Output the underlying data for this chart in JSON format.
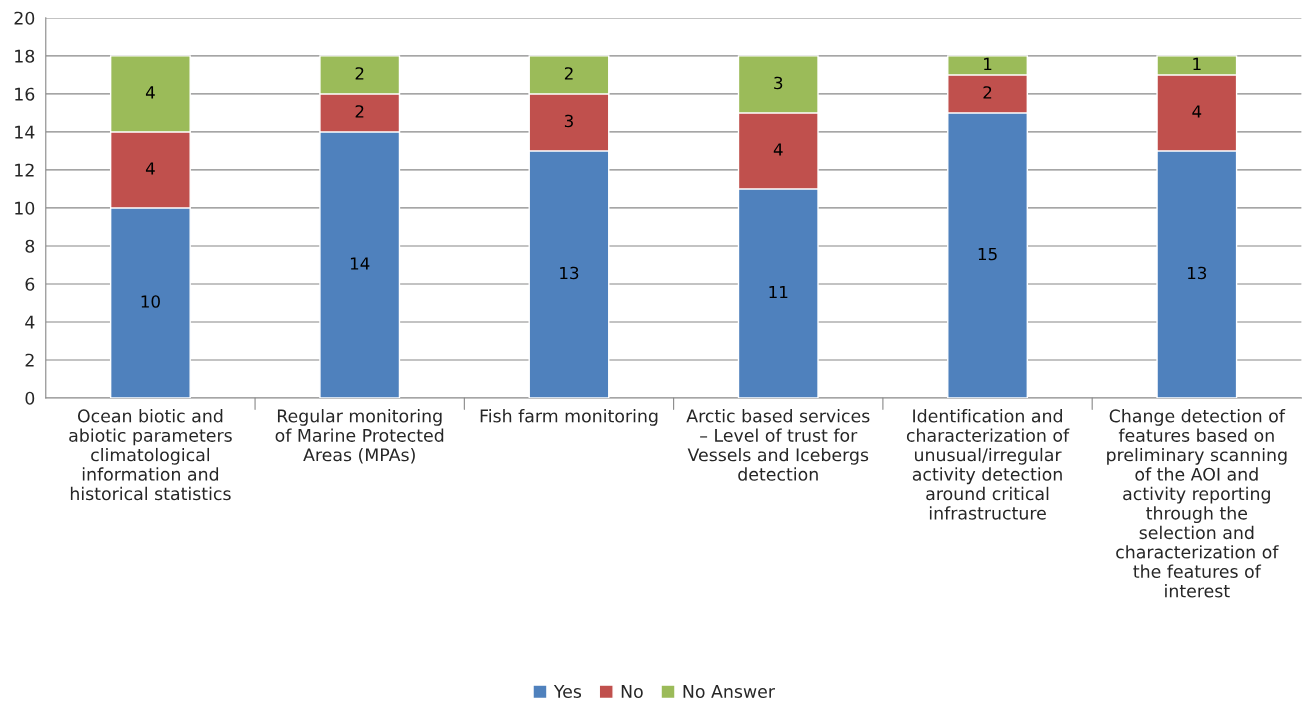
{
  "chart_data": {
    "type": "bar",
    "stacked": true,
    "categories": [
      "Ocean biotic and\nabiotic parameters\nclimatological\ninformation and\nhistorical statistics",
      "Regular monitoring\nof Marine Protected\nAreas (MPAs)",
      "Fish farm monitoring",
      "Arctic based services\n– Level of trust for\nVessels and Icebergs\ndetection",
      "Identification and\ncharacterization of\nunusual/irregular\nactivity detection\naround critical\ninfrastructure",
      "Change detection of\nfeatures based on\npreliminary scanning\nof the AOI and\nactivity reporting\nthrough the\nselection and\ncharacterization of\nthe features of\ninterest"
    ],
    "series": [
      {
        "name": "Yes",
        "color": "#4f81bd",
        "values": [
          10,
          14,
          13,
          11,
          15,
          13
        ]
      },
      {
        "name": "No",
        "color": "#c0504d",
        "values": [
          4,
          2,
          3,
          4,
          2,
          4
        ]
      },
      {
        "name": "No Answer",
        "color": "#9bbb59",
        "values": [
          4,
          2,
          2,
          3,
          1,
          1
        ]
      }
    ],
    "ylim": [
      0,
      20
    ],
    "yticks": [
      0,
      2,
      4,
      6,
      8,
      10,
      12,
      14,
      16,
      18,
      20
    ],
    "grid": "y",
    "legend": "bottom",
    "data_labels": true
  }
}
